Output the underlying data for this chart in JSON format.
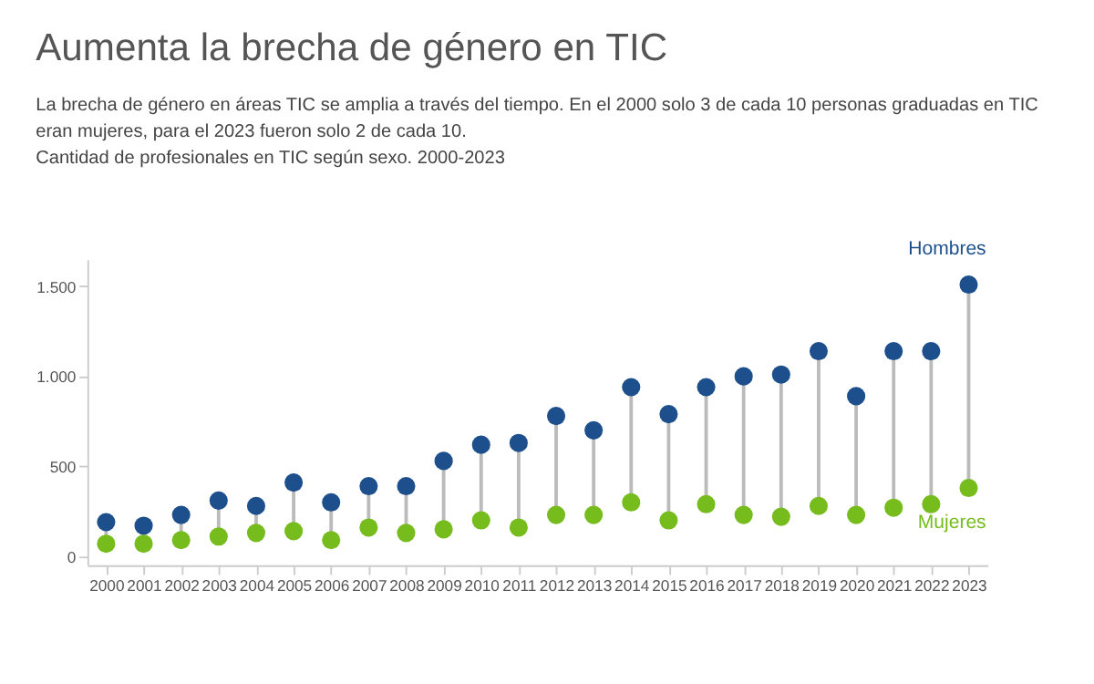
{
  "chart_data": {
    "type": "scatter",
    "title": "Aumenta la brecha de género en TIC",
    "subtitle": "La brecha de género en áreas TIC se amplia a través del tiempo. En el 2000 solo 3 de cada 10 personas graduadas en TIC eran mujeres, para el 2023 fueron solo 2 de cada 10.",
    "annotations": [
      "Cantidad de profesionales en TIC según sexo. 2000-2023"
    ],
    "categories": [
      "2000",
      "2001",
      "2002",
      "2003",
      "2004",
      "2005",
      "2006",
      "2007",
      "2008",
      "2009",
      "2010",
      "2011",
      "2012",
      "2013",
      "2014",
      "2015",
      "2016",
      "2017",
      "2018",
      "2019",
      "2020",
      "2021",
      "2022",
      "2023"
    ],
    "series": [
      {
        "name": "Hombres",
        "color": "#1c4f8c",
        "values": [
          190,
          170,
          230,
          310,
          280,
          410,
          300,
          390,
          390,
          530,
          620,
          630,
          780,
          700,
          940,
          790,
          940,
          1000,
          1010,
          1140,
          890,
          1140,
          1140,
          1510
        ]
      },
      {
        "name": "Mujeres",
        "color": "#76bc1c",
        "values": [
          70,
          70,
          90,
          110,
          130,
          140,
          90,
          160,
          130,
          150,
          200,
          160,
          230,
          230,
          300,
          200,
          290,
          230,
          220,
          280,
          230,
          270,
          290,
          380
        ]
      }
    ],
    "ylim": [
      -50,
      1650
    ],
    "yticks": [
      0,
      500,
      {
        "value": 1000,
        "label": "1.000"
      },
      {
        "value": 1500,
        "label": "1.500"
      }
    ],
    "grid": false,
    "legend": false,
    "marker": "circle"
  }
}
